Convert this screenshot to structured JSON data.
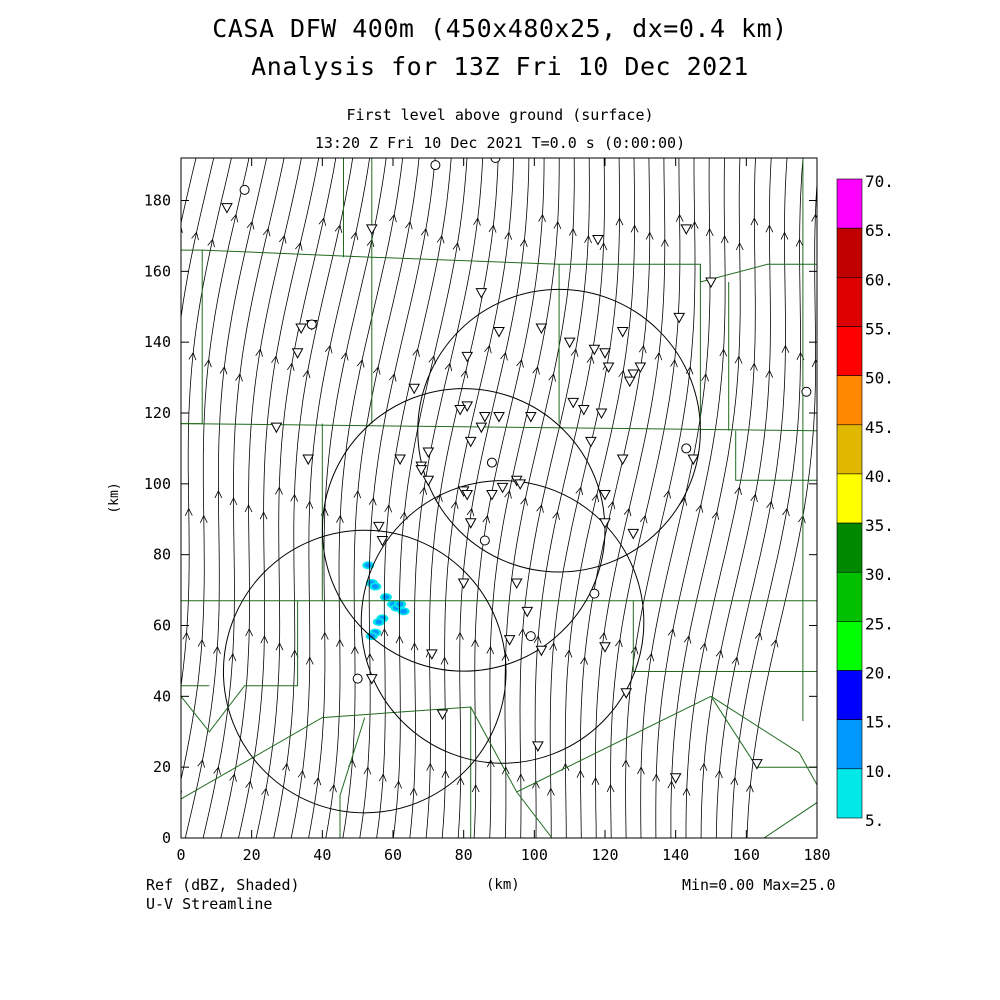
{
  "header": {
    "title_line1": "CASA DFW 400m (450x480x25, dx=0.4 km)",
    "title_line2": "Analysis for 13Z Fri 10 Dec 2021",
    "subtitle_line1": "First level above ground (surface)",
    "subtitle_line2": "13:20 Z Fri 10 Dec 2021    T=0.0 s (0:00:00)"
  },
  "footer": {
    "left_line1": "Ref (dBZ, Shaded)",
    "left_line2": "U-V Streamline",
    "center": "(km)",
    "stats": "Min=0.00 Max=25.0"
  },
  "map": {
    "x_label": "(km)",
    "y_label": "(km)",
    "x_range": [
      0,
      180
    ],
    "y_range": [
      0,
      192
    ],
    "x_ticks": [
      0,
      20,
      40,
      60,
      80,
      100,
      120,
      140,
      160,
      180
    ],
    "y_ticks": [
      0,
      20,
      40,
      60,
      80,
      100,
      120,
      140,
      160,
      180
    ],
    "county_line_color": "#1f6b1f",
    "radar_rings": [
      {
        "cx": 52,
        "cy": 47,
        "r": 40
      },
      {
        "cx": 80,
        "cy": 87,
        "r": 40
      },
      {
        "cx": 107,
        "cy": 115,
        "r": 40
      },
      {
        "cx": 91,
        "cy": 61,
        "r": 40
      }
    ],
    "station_triangles": [
      [
        13,
        178
      ],
      [
        54,
        172
      ],
      [
        118,
        169
      ],
      [
        143,
        172
      ],
      [
        150,
        157
      ],
      [
        34,
        144
      ],
      [
        33,
        137
      ],
      [
        37,
        145
      ],
      [
        85,
        154
      ],
      [
        81,
        136
      ],
      [
        90,
        143
      ],
      [
        102,
        144
      ],
      [
        110,
        140
      ],
      [
        117,
        138
      ],
      [
        120,
        137
      ],
      [
        121,
        133
      ],
      [
        125,
        143
      ],
      [
        128,
        131
      ],
      [
        130,
        133
      ],
      [
        127,
        129
      ],
      [
        66,
        127
      ],
      [
        81,
        122
      ],
      [
        79,
        121
      ],
      [
        86,
        119
      ],
      [
        90,
        119
      ],
      [
        99,
        119
      ],
      [
        111,
        123
      ],
      [
        114,
        121
      ],
      [
        119,
        120
      ],
      [
        141,
        147
      ],
      [
        27,
        116
      ],
      [
        36,
        107
      ],
      [
        62,
        107
      ],
      [
        68,
        105
      ],
      [
        68,
        104
      ],
      [
        70,
        109
      ],
      [
        70,
        101
      ],
      [
        82,
        112
      ],
      [
        85,
        116
      ],
      [
        116,
        112
      ],
      [
        125,
        107
      ],
      [
        145,
        107
      ],
      [
        80,
        98
      ],
      [
        81,
        97
      ],
      [
        88,
        97
      ],
      [
        91,
        99
      ],
      [
        95,
        101
      ],
      [
        96,
        100
      ],
      [
        120,
        97
      ],
      [
        120,
        89
      ],
      [
        128,
        86
      ],
      [
        56,
        88
      ],
      [
        57,
        84
      ],
      [
        82,
        89
      ],
      [
        80,
        72
      ],
      [
        95,
        72
      ],
      [
        98,
        64
      ],
      [
        93,
        56
      ],
      [
        71,
        52
      ],
      [
        102,
        53
      ],
      [
        120,
        54
      ],
      [
        54,
        45
      ],
      [
        74,
        35
      ],
      [
        101,
        26
      ],
      [
        126,
        41
      ],
      [
        140,
        17
      ],
      [
        163,
        21
      ]
    ],
    "station_circles": [
      [
        18,
        183
      ],
      [
        72,
        190
      ],
      [
        37,
        145
      ],
      [
        88,
        106
      ],
      [
        86,
        84
      ],
      [
        117,
        69
      ],
      [
        99,
        57
      ],
      [
        50,
        45
      ],
      [
        177,
        126
      ],
      [
        143,
        110
      ],
      [
        89,
        192
      ]
    ],
    "streamline_columns": 40,
    "arrow_rows": [
      18,
      55,
      95,
      135,
      172
    ],
    "echo_spots": [
      [
        53,
        77
      ],
      [
        54,
        72
      ],
      [
        55,
        71
      ],
      [
        58,
        68
      ],
      [
        60,
        66
      ],
      [
        61,
        65
      ],
      [
        62,
        66
      ],
      [
        63,
        64
      ],
      [
        57,
        62
      ],
      [
        56,
        61
      ],
      [
        55,
        58
      ],
      [
        54,
        57
      ]
    ]
  },
  "colorbar": {
    "labels": [
      "70.",
      "65.",
      "60.",
      "55.",
      "50.",
      "45.",
      "40.",
      "35.",
      "30.",
      "25.",
      "20.",
      "15.",
      "10.",
      "5."
    ],
    "colors": [
      "#ff00ff",
      "#c00000",
      "#dd0000",
      "#ff0000",
      "#ff8800",
      "#e0b800",
      "#ffff00",
      "#008800",
      "#00c000",
      "#00ff00",
      "#0000ff",
      "#0099ff",
      "#00e8e8"
    ]
  }
}
